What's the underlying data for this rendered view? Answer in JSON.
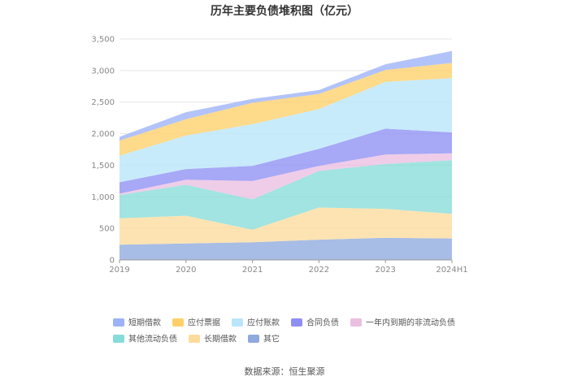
{
  "chart_data": {
    "type": "area",
    "stacked": true,
    "title": "历年主要负债堆积图（亿元）",
    "categories": [
      "2019",
      "2020",
      "2021",
      "2022",
      "2023",
      "2024H1"
    ],
    "ylim": [
      0,
      3500
    ],
    "yticks": [
      "0",
      "500",
      "1,000",
      "1,500",
      "2,000",
      "2,500",
      "3,000",
      "3,500"
    ],
    "ytick_values": [
      0,
      500,
      1000,
      1500,
      2000,
      2500,
      3000,
      3500
    ],
    "grid": true,
    "legend_position": "bottom",
    "series": [
      {
        "name": "其它",
        "color": "#8eaadf",
        "values": [
          240,
          260,
          280,
          320,
          350,
          340
        ]
      },
      {
        "name": "长期借款",
        "color": "#fcdb9c",
        "values": [
          420,
          440,
          200,
          510,
          460,
          390
        ]
      },
      {
        "name": "其他流动负债",
        "color": "#86dcd9",
        "values": [
          370,
          490,
          480,
          580,
          710,
          850
        ]
      },
      {
        "name": "一年内到期的非流动负债",
        "color": "#ebbfe2",
        "values": [
          20,
          80,
          290,
          80,
          150,
          110
        ]
      },
      {
        "name": "合同负债",
        "color": "#8e8ff3",
        "values": [
          180,
          170,
          240,
          270,
          410,
          330
        ]
      },
      {
        "name": "应付账款",
        "color": "#b9e5fb",
        "values": [
          420,
          530,
          660,
          630,
          740,
          860
        ]
      },
      {
        "name": "应付票据",
        "color": "#fed06a",
        "values": [
          240,
          260,
          340,
          240,
          190,
          240
        ]
      },
      {
        "name": "短期借款",
        "color": "#9cb2f7",
        "values": [
          60,
          110,
          60,
          60,
          90,
          190
        ]
      }
    ],
    "legend_order": [
      "短期借款",
      "应付票据",
      "应付账款",
      "合同负债",
      "一年内到期的非流动负债",
      "其他流动负债",
      "长期借款",
      "其它"
    ]
  },
  "footer": {
    "source": "数据来源：恒生聚源"
  }
}
